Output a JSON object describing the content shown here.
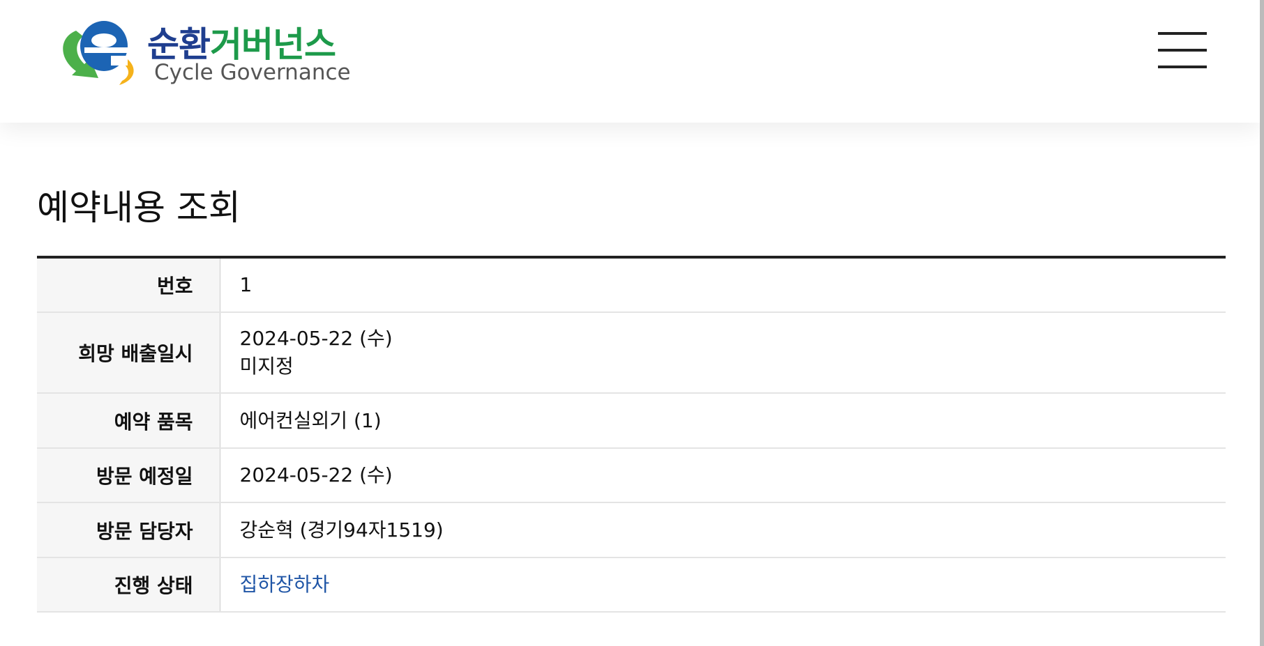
{
  "header": {
    "logo_ko_1": "순환",
    "logo_ko_2": "거버넌스",
    "logo_en": "Cycle Governance",
    "menu_icon": "hamburger-icon"
  },
  "page": {
    "title": "예약내용 조회"
  },
  "rows": [
    {
      "label": "번호",
      "value": "1"
    },
    {
      "label": "희망 배출일시",
      "value": "2024-05-22 (수)",
      "value2": "미지정"
    },
    {
      "label": "예약 품목",
      "value": "에어컨실외기 (1)"
    },
    {
      "label": "방문 예정일",
      "value": "2024-05-22 (수)"
    },
    {
      "label": "방문 담당자",
      "value": "강순혁 (경기94자1519)"
    },
    {
      "label": "진행 상태",
      "value": "집하장하차"
    }
  ],
  "colors": {
    "status": "#1f55a6",
    "logo_blue": "#1f3e8f",
    "logo_green": "#1d9a4a"
  }
}
